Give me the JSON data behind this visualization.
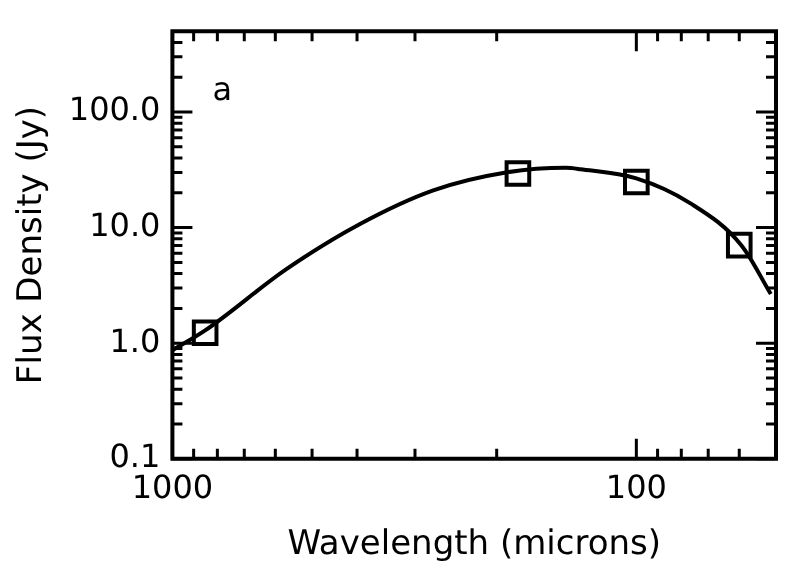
{
  "chart_data": {
    "type": "line",
    "xlabel": "Wavelength (microns)",
    "ylabel": "Flux Density (Jy)",
    "annotations": [
      "a"
    ],
    "log": "xy",
    "xlim": [
      1000,
      50
    ],
    "xticks": [
      1000,
      {
        "value": 900,
        "label": null
      },
      {
        "value": 800,
        "label": null
      },
      {
        "value": 700,
        "label": null
      },
      {
        "value": 600,
        "label": null
      },
      {
        "value": 500,
        "label": null
      },
      {
        "value": 400,
        "label": null
      },
      {
        "value": 300,
        "label": null
      },
      {
        "value": 200,
        "label": null
      },
      100,
      {
        "value": 90,
        "label": null
      },
      {
        "value": 80,
        "label": null
      },
      {
        "value": 70,
        "label": null
      },
      {
        "value": 60,
        "label": null
      }
    ],
    "ylim": [
      0.1,
      500
    ],
    "yticks": [
      0.1,
      {
        "value": 0.2,
        "label": null
      },
      {
        "value": 0.3,
        "label": null
      },
      {
        "value": 0.4,
        "label": null
      },
      {
        "value": 0.5,
        "label": null
      },
      {
        "value": 0.6,
        "label": null
      },
      {
        "value": 0.7,
        "label": null
      },
      {
        "value": 0.8,
        "label": null
      },
      {
        "value": 0.9,
        "label": null
      },
      {
        "value": 1,
        "label": "1.0"
      },
      {
        "value": 2,
        "label": null
      },
      {
        "value": 3,
        "label": null
      },
      {
        "value": 4,
        "label": null
      },
      {
        "value": 5,
        "label": null
      },
      {
        "value": 6,
        "label": null
      },
      {
        "value": 7,
        "label": null
      },
      {
        "value": 8,
        "label": null
      },
      {
        "value": 9,
        "label": null
      },
      {
        "value": 10,
        "label": "10.0"
      },
      {
        "value": 20,
        "label": null
      },
      {
        "value": 30,
        "label": null
      },
      {
        "value": 40,
        "label": null
      },
      {
        "value": 50,
        "label": null
      },
      {
        "value": 60,
        "label": null
      },
      {
        "value": 70,
        "label": null
      },
      {
        "value": 80,
        "label": null
      },
      {
        "value": 90,
        "label": null
      },
      {
        "value": 100,
        "label": "100.0"
      },
      {
        "value": 200,
        "label": null
      },
      {
        "value": 300,
        "label": null
      },
      {
        "value": 400,
        "label": null
      }
    ],
    "series": [
      {
        "type": "line",
        "color": "#000000",
        "marker": "none",
        "line_style": "solid",
        "x": [
          1000,
          850,
          569,
          395,
          274,
          191,
          142,
          132,
          100,
          76.6,
          59.4,
          51.3
        ],
        "values": [
          0.87,
          1.29,
          4.35,
          10.7,
          21,
          30,
          32.9,
          32,
          26.7,
          16.3,
          7.05,
          2.66
        ]
      },
      {
        "type": "scatter",
        "color": "#000000",
        "marker": "square",
        "x": [
          850,
          180,
          100,
          60
        ],
        "values": [
          1.23,
          29.4,
          24.8,
          7.05
        ]
      }
    ]
  }
}
